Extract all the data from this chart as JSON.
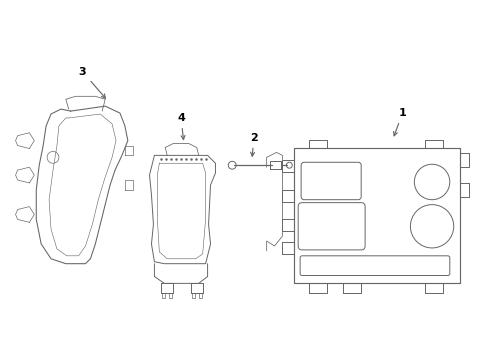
{
  "background_color": "#ffffff",
  "line_color": "#666666",
  "text_color": "#000000",
  "label_fontsize": 8,
  "line_width": 0.7,
  "figsize": [
    4.9,
    3.6
  ],
  "dpi": 100
}
